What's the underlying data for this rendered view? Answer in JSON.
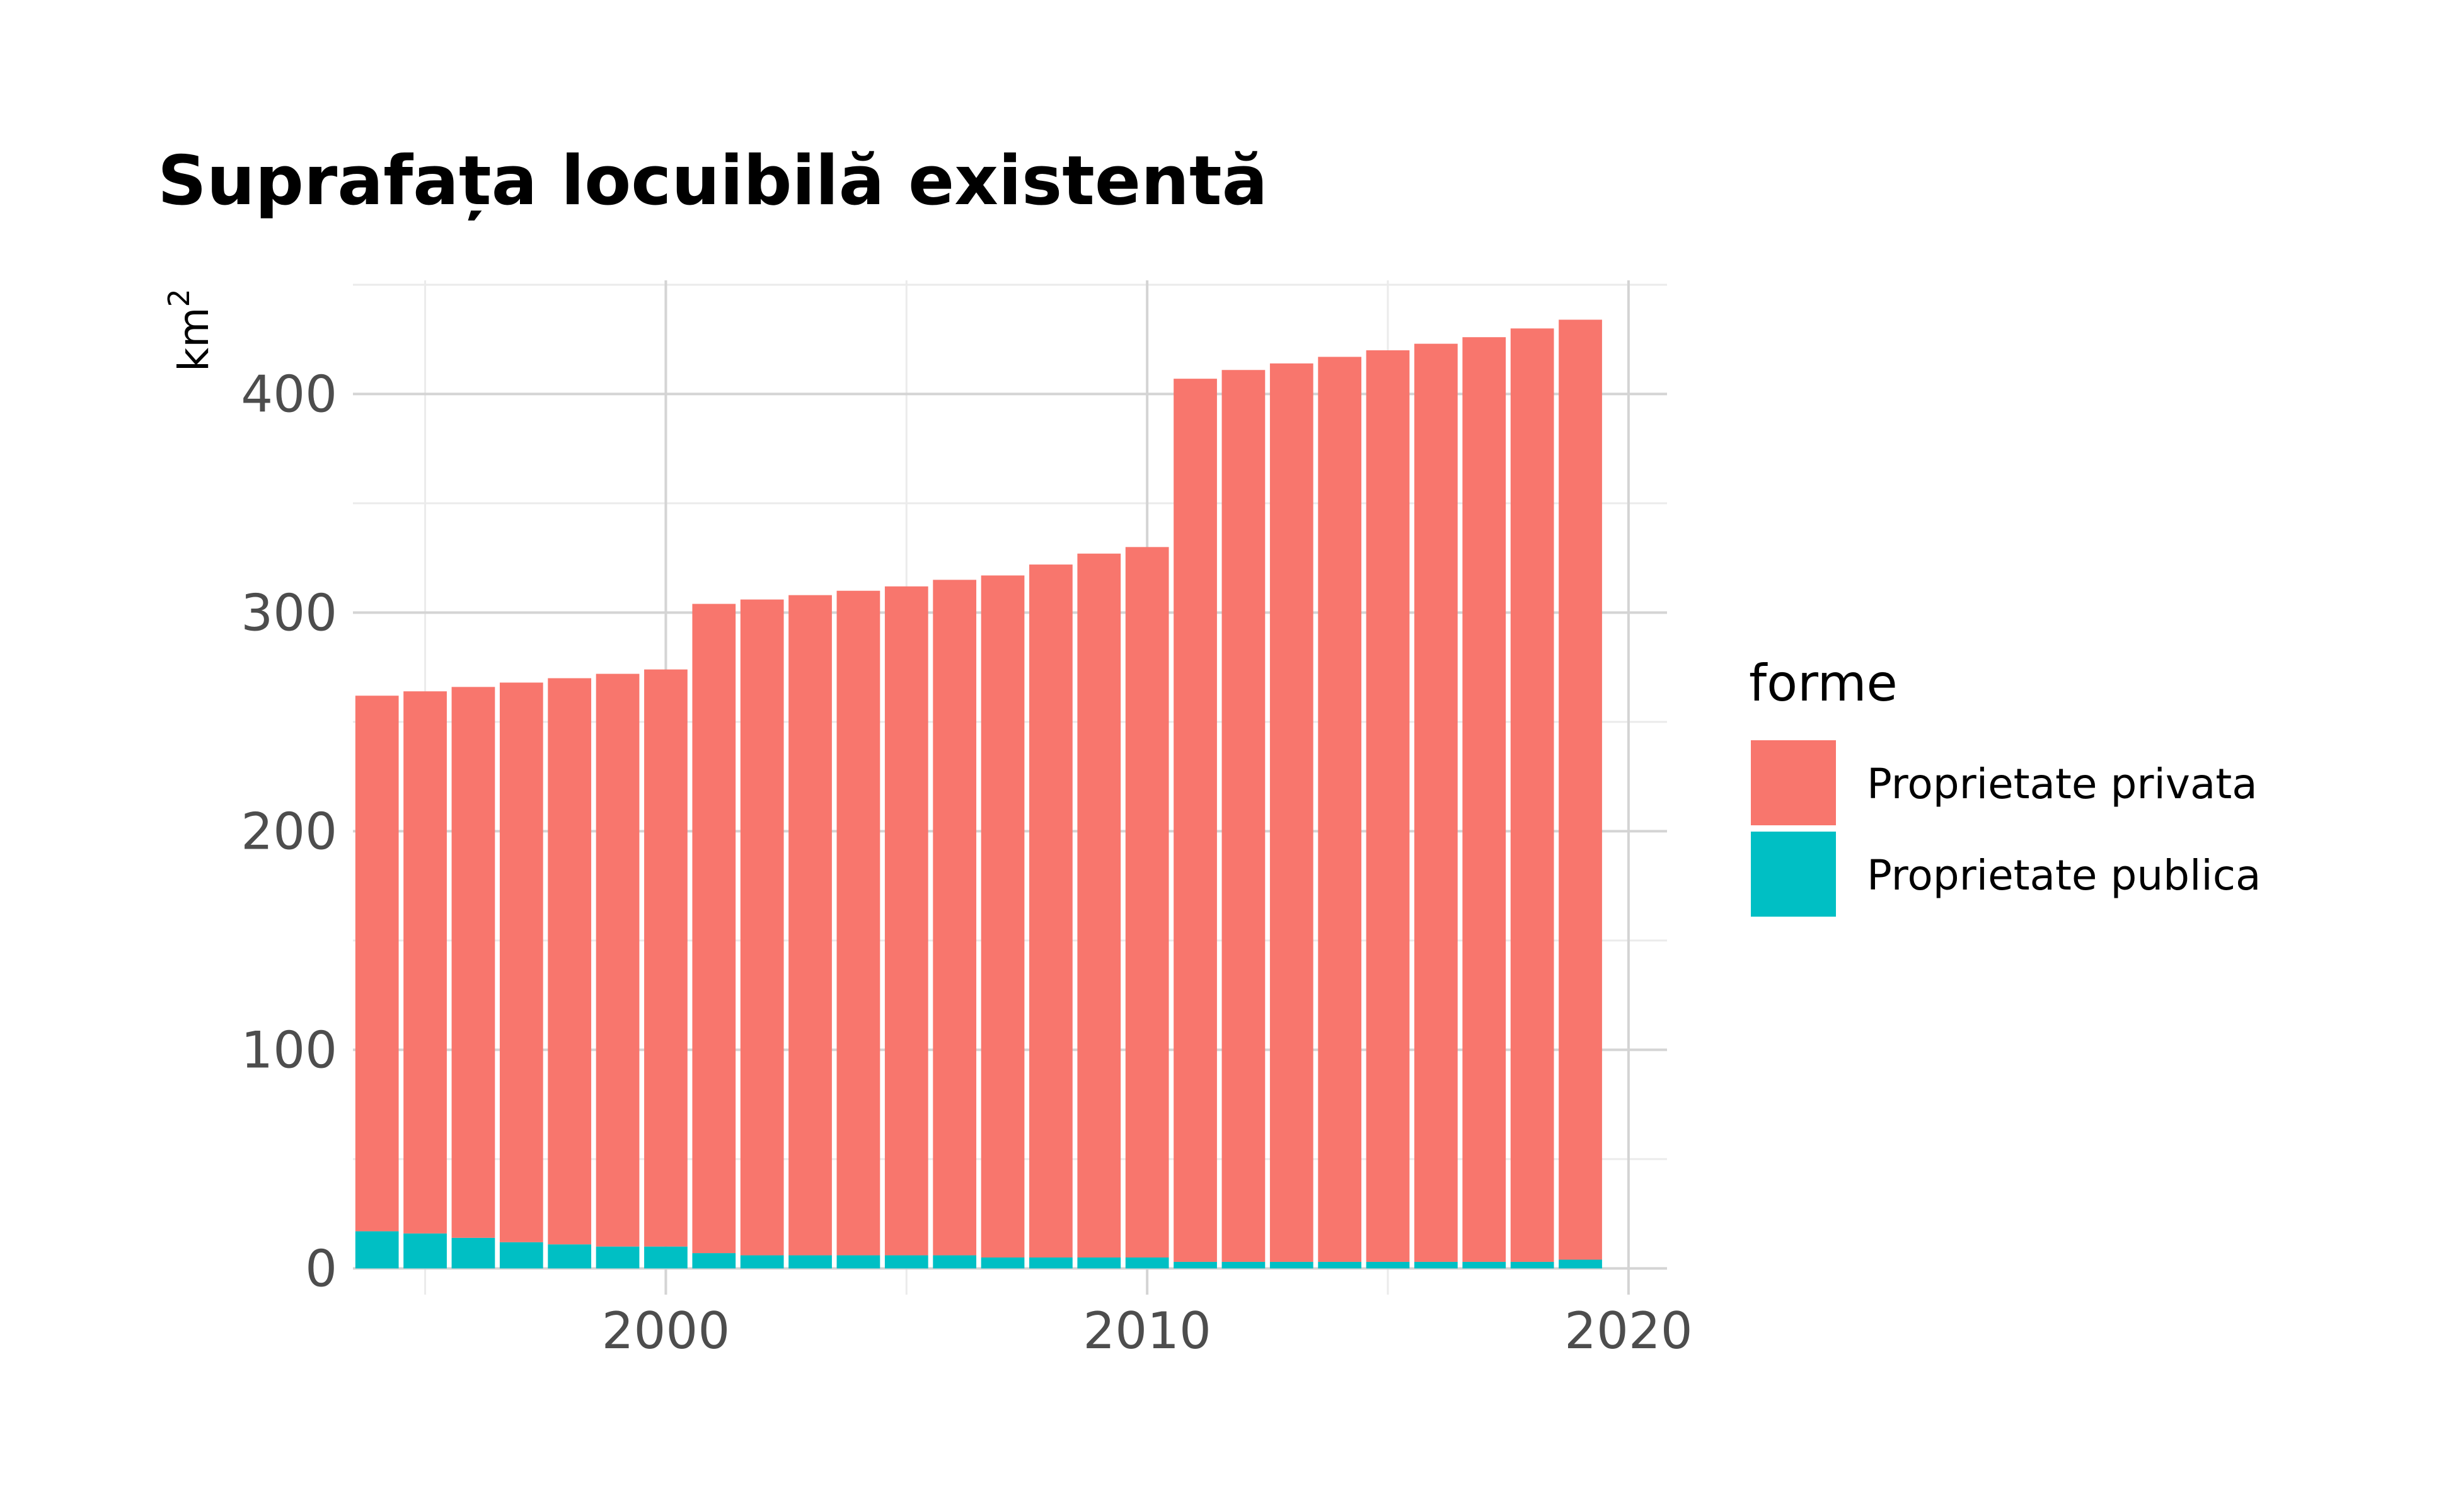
{
  "chart_data": {
    "type": "bar",
    "stacked": true,
    "title": "Suprafața locuibilă existentă",
    "ylabel": "km",
    "ylabel_superscript": "2",
    "xlabel": "",
    "x": [
      1994,
      1995,
      1996,
      1997,
      1998,
      1999,
      2000,
      2001,
      2002,
      2003,
      2004,
      2005,
      2006,
      2007,
      2008,
      2009,
      2010,
      2011,
      2012,
      2013,
      2014,
      2015,
      2016,
      2017,
      2018,
      2019
    ],
    "series": [
      {
        "name": "Proprietate publica",
        "color": "#00BFC4",
        "values": [
          17,
          16,
          14,
          12,
          11,
          10,
          10,
          7,
          6,
          6,
          6,
          6,
          6,
          5,
          5,
          5,
          5,
          3,
          3,
          3,
          3,
          3,
          3,
          3,
          3,
          4
        ]
      },
      {
        "name": "Proprietate privata",
        "color": "#F8766D",
        "values": [
          245,
          248,
          252,
          256,
          259,
          262,
          264,
          297,
          300,
          302,
          304,
          306,
          309,
          312,
          317,
          322,
          325,
          404,
          408,
          411,
          414,
          417,
          420,
          423,
          427,
          430
        ]
      }
    ],
    "xlim": [
      1993.5,
      2020.8
    ],
    "ylim": [
      -12,
      452
    ],
    "xticks": [
      2000,
      2010,
      2020
    ],
    "xticks_minor": [
      1995,
      2005,
      2015
    ],
    "yticks": [
      0,
      100,
      200,
      300,
      400
    ],
    "yticks_minor": [
      50,
      150,
      250,
      350,
      450
    ],
    "grid": true,
    "legend": {
      "title": "forme",
      "position": "right",
      "entries": [
        "Proprietate privata",
        "Proprietate publica"
      ]
    }
  }
}
